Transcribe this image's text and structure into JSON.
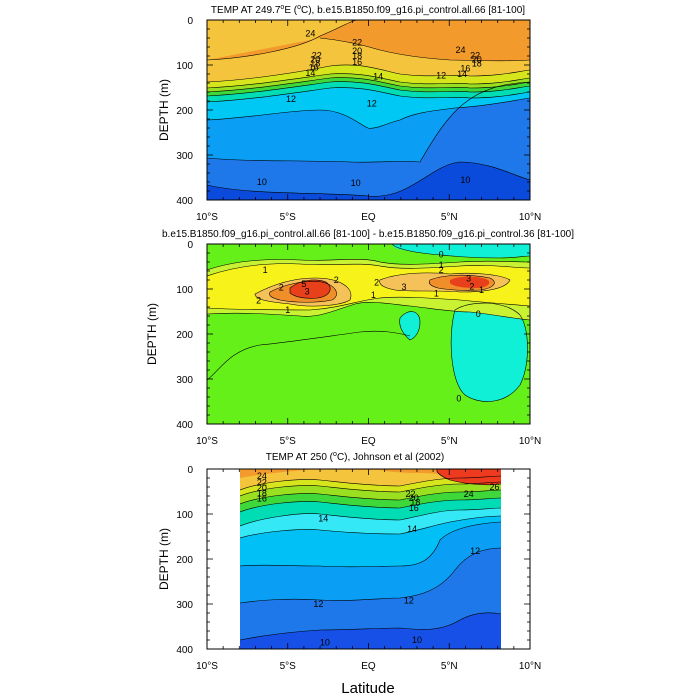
{
  "figure": {
    "xlabel": "Latitude"
  },
  "chart_data": [
    {
      "type": "heatmap",
      "title": "TEMP AT 249.7°E (°C), b.e15.B1850.f09_g16.pi_control.all.66 [81-100]",
      "title_parts": {
        "pre": "TEMP AT 249.7",
        "deg1": "o",
        "mid": "E (",
        "deg2": "o",
        "post": "C), b.e15.B1850.f09_g16.pi_control.all.66 [81-100]"
      },
      "xlabel": "Latitude",
      "ylabel": "DEPTH (m)",
      "xlim": [
        -10,
        10
      ],
      "ylim": [
        400,
        0
      ],
      "xticks": [
        "10°S",
        "5°S",
        "EQ",
        "5°N",
        "10°N"
      ],
      "yticks": [
        "0",
        "100",
        "200",
        "300",
        "400"
      ],
      "contour_labels": [
        {
          "x": -3.6,
          "y": 30,
          "text": "24"
        },
        {
          "x": -3.2,
          "y": 79,
          "text": "22"
        },
        {
          "x": -3.3,
          "y": 88,
          "text": "20"
        },
        {
          "x": -3.3,
          "y": 97,
          "text": "18"
        },
        {
          "x": -3.4,
          "y": 106,
          "text": "16"
        },
        {
          "x": -3.6,
          "y": 118,
          "text": "14"
        },
        {
          "x": -4.8,
          "y": 175,
          "text": "12"
        },
        {
          "x": -0.7,
          "y": 50,
          "text": "22"
        },
        {
          "x": -0.7,
          "y": 69,
          "text": "20"
        },
        {
          "x": -0.7,
          "y": 80,
          "text": "18"
        },
        {
          "x": -0.7,
          "y": 93,
          "text": "16"
        },
        {
          "x": 0.6,
          "y": 125,
          "text": "14"
        },
        {
          "x": 0.2,
          "y": 185,
          "text": "12"
        },
        {
          "x": 4.5,
          "y": 123,
          "text": "12"
        },
        {
          "x": 5.7,
          "y": 67,
          "text": "24"
        },
        {
          "x": 6.6,
          "y": 79,
          "text": "22"
        },
        {
          "x": 6.7,
          "y": 88,
          "text": "20"
        },
        {
          "x": 6.7,
          "y": 97,
          "text": "18"
        },
        {
          "x": 6.0,
          "y": 108,
          "text": "16"
        },
        {
          "x": 5.8,
          "y": 120,
          "text": "14"
        },
        {
          "x": -6.6,
          "y": 360,
          "text": "10"
        },
        {
          "x": -0.8,
          "y": 362,
          "text": "10"
        },
        {
          "x": 6.0,
          "y": 356,
          "text": "10"
        }
      ]
    },
    {
      "type": "heatmap",
      "title": "b.e15.B1850.f09_g16.pi_control.all.66 [81-100] - b.e15.B1850.f09_g16.pi_control.36 [81-100]",
      "xlabel": "Latitude",
      "ylabel": "DEPTH (m)",
      "xlim": [
        -10,
        10
      ],
      "ylim": [
        400,
        0
      ],
      "xticks": [
        "10°S",
        "5°S",
        "EQ",
        "5°N",
        "10°N"
      ],
      "yticks": [
        "0",
        "100",
        "200",
        "300",
        "400"
      ],
      "contour_labels": [
        {
          "x": -6.4,
          "y": 58,
          "text": "1"
        },
        {
          "x": -6.8,
          "y": 126,
          "text": "2"
        },
        {
          "x": -5.4,
          "y": 97,
          "text": "2"
        },
        {
          "x": -5.0,
          "y": 147,
          "text": "1"
        },
        {
          "x": -4.0,
          "y": 89,
          "text": "5"
        },
        {
          "x": -3.8,
          "y": 105,
          "text": "3"
        },
        {
          "x": -2.0,
          "y": 80,
          "text": "2"
        },
        {
          "x": 0.5,
          "y": 86,
          "text": "2"
        },
        {
          "x": 0.3,
          "y": 113,
          "text": "1"
        },
        {
          "x": 2.2,
          "y": 95,
          "text": "3"
        },
        {
          "x": 4.5,
          "y": 23,
          "text": "0"
        },
        {
          "x": 4.5,
          "y": 47,
          "text": "1"
        },
        {
          "x": 4.5,
          "y": 58,
          "text": "2"
        },
        {
          "x": 6.2,
          "y": 77,
          "text": "3"
        },
        {
          "x": 6.4,
          "y": 94,
          "text": "2"
        },
        {
          "x": 4.2,
          "y": 110,
          "text": "1"
        },
        {
          "x": 7.0,
          "y": 102,
          "text": "1"
        },
        {
          "x": 6.8,
          "y": 155,
          "text": "0"
        },
        {
          "x": 5.6,
          "y": 343,
          "text": "0"
        }
      ]
    },
    {
      "type": "heatmap",
      "title": "TEMP AT 250 (°C), Johnson et al (2002)",
      "title_parts": {
        "pre": "TEMP AT 250 (",
        "deg": "o",
        "post": "C), Johnson et al (2002)"
      },
      "xlabel": "Latitude",
      "ylabel": "DEPTH (m)",
      "xlim": [
        -10,
        10
      ],
      "ylim": [
        400,
        0
      ],
      "data_xrange": [
        -8,
        8.3
      ],
      "xticks": [
        "10°S",
        "5°S",
        "EQ",
        "5°N",
        "10°N"
      ],
      "yticks": [
        "0",
        "100",
        "200",
        "300",
        "400"
      ],
      "contour_labels": [
        {
          "x": -6.6,
          "y": 15,
          "text": "24"
        },
        {
          "x": -6.6,
          "y": 30,
          "text": "22"
        },
        {
          "x": -6.6,
          "y": 42,
          "text": "20"
        },
        {
          "x": -6.6,
          "y": 54,
          "text": "18"
        },
        {
          "x": -6.6,
          "y": 65,
          "text": "16"
        },
        {
          "x": -2.8,
          "y": 110,
          "text": "14"
        },
        {
          "x": 2.6,
          "y": 55,
          "text": "22"
        },
        {
          "x": 2.8,
          "y": 64,
          "text": "20"
        },
        {
          "x": 2.9,
          "y": 74,
          "text": "18"
        },
        {
          "x": 2.8,
          "y": 87,
          "text": "16"
        },
        {
          "x": 6.2,
          "y": 55,
          "text": "24"
        },
        {
          "x": 7.8,
          "y": 40,
          "text": "26"
        },
        {
          "x": 2.7,
          "y": 133,
          "text": "14"
        },
        {
          "x": 6.6,
          "y": 182,
          "text": "12"
        },
        {
          "x": -3.1,
          "y": 300,
          "text": "12"
        },
        {
          "x": 2.5,
          "y": 292,
          "text": "12"
        },
        {
          "x": -2.7,
          "y": 385,
          "text": "10"
        },
        {
          "x": 3.0,
          "y": 380,
          "text": "10"
        }
      ]
    }
  ]
}
